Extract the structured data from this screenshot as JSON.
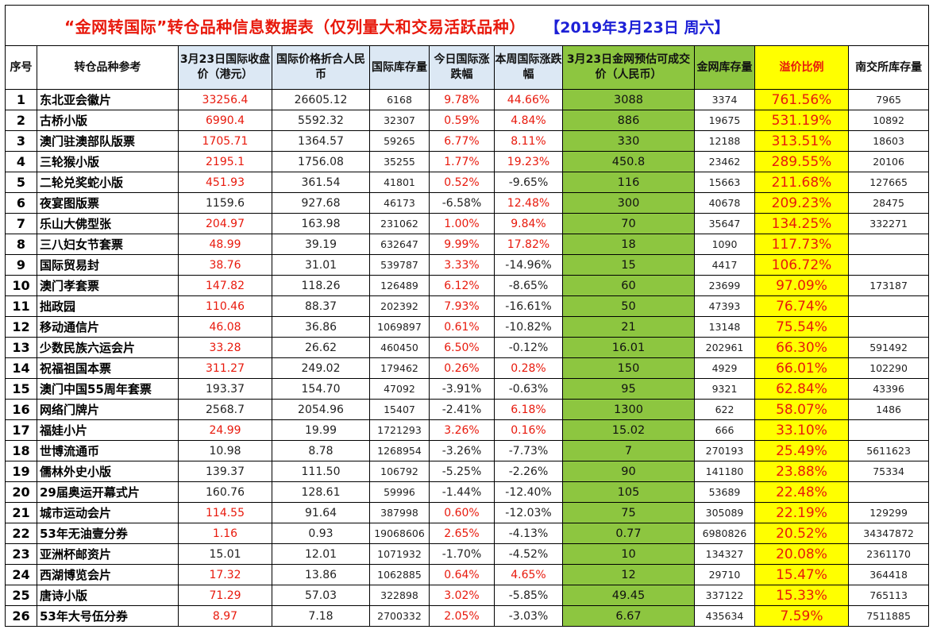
{
  "title": {
    "main": "“金网转国际”转仓品种信息数据表（仅列量大和交易活跃品种）",
    "date": "【2019年3月23日  周六】"
  },
  "headers": {
    "idx": "序号",
    "name": "转仓品种参考",
    "close_hkd": "3月23日国际收盘价（港元）",
    "rmb": "国际价格折合人民币",
    "intl_stock": "国际库存量",
    "today_change": "今日国际涨跌幅",
    "week_change": "本周国际涨跌幅",
    "est_price": "3月23日金网预估可成交价（人民币）",
    "jw_stock": "金网库存量",
    "premium": "溢价比例",
    "nj_stock": "南交所库存量"
  },
  "colors": {
    "title_red": "#e8190c",
    "title_blue": "#1d20d6",
    "header_blue_bg": "#dce8f4",
    "green_bg": "#8dc640",
    "yellow_bg": "#ffff00",
    "red_text": "#e8190c"
  },
  "rows": [
    {
      "idx": "1",
      "name": "东北亚会徽片",
      "close": "33256.4",
      "close_red": true,
      "rmb": "26605.12",
      "intl_stock": "6168",
      "today": "9.78%",
      "today_red": true,
      "week": "44.66%",
      "week_red": true,
      "est": "3088",
      "jw_stock": "3374",
      "premium": "761.56%",
      "nj": "7965"
    },
    {
      "idx": "2",
      "name": "古桥小版",
      "close": "6990.4",
      "close_red": true,
      "rmb": "5592.32",
      "intl_stock": "32307",
      "today": "0.59%",
      "today_red": true,
      "week": "4.84%",
      "week_red": true,
      "est": "886",
      "jw_stock": "19675",
      "premium": "531.19%",
      "nj": "10892"
    },
    {
      "idx": "3",
      "name": "澳门驻澳部队版票",
      "close": "1705.71",
      "close_red": true,
      "rmb": "1364.57",
      "intl_stock": "59265",
      "today": "6.77%",
      "today_red": true,
      "week": "8.11%",
      "week_red": true,
      "est": "330",
      "jw_stock": "12188",
      "premium": "313.51%",
      "nj": "18603"
    },
    {
      "idx": "4",
      "name": "三轮猴小版",
      "close": "2195.1",
      "close_red": true,
      "rmb": "1756.08",
      "intl_stock": "35255",
      "today": "1.77%",
      "today_red": true,
      "week": "19.23%",
      "week_red": true,
      "est": "450.8",
      "jw_stock": "23462",
      "premium": "289.55%",
      "nj": "20106"
    },
    {
      "idx": "5",
      "name": "二轮兑奖蛇小版",
      "close": "451.93",
      "close_red": true,
      "rmb": "361.54",
      "intl_stock": "41801",
      "today": "0.52%",
      "today_red": true,
      "week": "-9.65%",
      "week_red": false,
      "est": "116",
      "jw_stock": "15663",
      "premium": "211.68%",
      "nj": "127665"
    },
    {
      "idx": "6",
      "name": "夜宴图版票",
      "close": "1159.6",
      "close_red": false,
      "rmb": "927.68",
      "intl_stock": "46173",
      "today": "-6.58%",
      "today_red": false,
      "week": "12.48%",
      "week_red": true,
      "est": "300",
      "jw_stock": "40678",
      "premium": "209.23%",
      "nj": "28475"
    },
    {
      "idx": "7",
      "name": "乐山大佛型张",
      "close": "204.97",
      "close_red": true,
      "rmb": "163.98",
      "intl_stock": "231062",
      "today": "1.00%",
      "today_red": true,
      "week": "9.84%",
      "week_red": true,
      "est": "70",
      "jw_stock": "35647",
      "premium": "134.25%",
      "nj": "332271"
    },
    {
      "idx": "8",
      "name": "三八妇女节套票",
      "close": "48.99",
      "close_red": true,
      "rmb": "39.19",
      "intl_stock": "632647",
      "today": "9.99%",
      "today_red": true,
      "week": "17.82%",
      "week_red": true,
      "est": "18",
      "jw_stock": "1090",
      "premium": "117.73%",
      "nj": ""
    },
    {
      "idx": "9",
      "name": "国际贸易封",
      "close": "38.76",
      "close_red": true,
      "rmb": "31.01",
      "intl_stock": "539787",
      "today": "3.33%",
      "today_red": true,
      "week": "-14.96%",
      "week_red": false,
      "est": "15",
      "jw_stock": "4417",
      "premium": "106.72%",
      "nj": ""
    },
    {
      "idx": "10",
      "name": "澳门孝套票",
      "close": "147.82",
      "close_red": true,
      "rmb": "118.26",
      "intl_stock": "126489",
      "today": "6.12%",
      "today_red": true,
      "week": "-8.65%",
      "week_red": false,
      "est": "60",
      "jw_stock": "23699",
      "premium": "97.09%",
      "nj": "173187"
    },
    {
      "idx": "11",
      "name": "拙政园",
      "close": "110.46",
      "close_red": true,
      "rmb": "88.37",
      "intl_stock": "202392",
      "today": "7.93%",
      "today_red": true,
      "week": "-16.61%",
      "week_red": false,
      "est": "50",
      "jw_stock": "47393",
      "premium": "76.74%",
      "nj": ""
    },
    {
      "idx": "12",
      "name": "移动通信片",
      "close": "46.08",
      "close_red": true,
      "rmb": "36.86",
      "intl_stock": "1069897",
      "today": "0.61%",
      "today_red": true,
      "week": "-10.82%",
      "week_red": false,
      "est": "21",
      "jw_stock": "13148",
      "premium": "75.54%",
      "nj": ""
    },
    {
      "idx": "13",
      "name": "少数民族六运会片",
      "close": "33.28",
      "close_red": true,
      "rmb": "26.62",
      "intl_stock": "460450",
      "today": "6.50%",
      "today_red": true,
      "week": "-0.12%",
      "week_red": false,
      "est": "16.01",
      "jw_stock": "202961",
      "premium": "66.30%",
      "nj": "591492"
    },
    {
      "idx": "14",
      "name": "祝福祖国本票",
      "close": "311.27",
      "close_red": true,
      "rmb": "249.02",
      "intl_stock": "179462",
      "today": "0.26%",
      "today_red": true,
      "week": "0.28%",
      "week_red": true,
      "est": "150",
      "jw_stock": "4929",
      "premium": "66.01%",
      "nj": "102290"
    },
    {
      "idx": "15",
      "name": "澳门中国55周年套票",
      "close": "193.37",
      "close_red": false,
      "rmb": "154.70",
      "intl_stock": "47092",
      "today": "-3.91%",
      "today_red": false,
      "week": "-0.63%",
      "week_red": false,
      "est": "95",
      "jw_stock": "9321",
      "premium": "62.84%",
      "nj": "43396"
    },
    {
      "idx": "16",
      "name": "网络门牌片",
      "close": "2568.7",
      "close_red": false,
      "rmb": "2054.96",
      "intl_stock": "15407",
      "today": "-2.41%",
      "today_red": false,
      "week": "6.18%",
      "week_red": true,
      "est": "1300",
      "jw_stock": "622",
      "premium": "58.07%",
      "nj": "1486"
    },
    {
      "idx": "17",
      "name": "福娃小片",
      "close": "24.99",
      "close_red": true,
      "rmb": "19.99",
      "intl_stock": "1721293",
      "today": "3.26%",
      "today_red": true,
      "week": "0.16%",
      "week_red": true,
      "est": "15.02",
      "jw_stock": "666",
      "premium": "33.10%",
      "nj": ""
    },
    {
      "idx": "18",
      "name": "世博流通币",
      "close": "10.98",
      "close_red": false,
      "rmb": "8.78",
      "intl_stock": "1268954",
      "today": "-3.26%",
      "today_red": false,
      "week": "-7.73%",
      "week_red": false,
      "est": "7",
      "jw_stock": "270193",
      "premium": "25.49%",
      "nj": "5611623"
    },
    {
      "idx": "19",
      "name": "儒林外史小版",
      "close": "139.37",
      "close_red": false,
      "rmb": "111.50",
      "intl_stock": "106792",
      "today": "-5.25%",
      "today_red": false,
      "week": "-2.26%",
      "week_red": false,
      "est": "90",
      "jw_stock": "141180",
      "premium": "23.88%",
      "nj": "75334"
    },
    {
      "idx": "20",
      "name": "29届奥运开幕式片",
      "close": "160.76",
      "close_red": false,
      "rmb": "128.61",
      "intl_stock": "59996",
      "today": "-1.44%",
      "today_red": false,
      "week": "-12.40%",
      "week_red": false,
      "est": "105",
      "jw_stock": "53689",
      "premium": "22.48%",
      "nj": ""
    },
    {
      "idx": "21",
      "name": "城市运动会片",
      "close": "114.55",
      "close_red": true,
      "rmb": "91.64",
      "intl_stock": "387998",
      "today": "0.60%",
      "today_red": true,
      "week": "-12.03%",
      "week_red": false,
      "est": "75",
      "jw_stock": "305089",
      "premium": "22.19%",
      "nj": "129299"
    },
    {
      "idx": "22",
      "name": "53年无油壹分券",
      "close": "1.16",
      "close_red": true,
      "rmb": "0.93",
      "intl_stock": "19068606",
      "today": "2.65%",
      "today_red": true,
      "week": "-4.13%",
      "week_red": false,
      "est": "0.77",
      "jw_stock": "6980826",
      "premium": "20.52%",
      "nj": "34347872"
    },
    {
      "idx": "23",
      "name": "亚洲杯邮资片",
      "close": "15.01",
      "close_red": false,
      "rmb": "12.01",
      "intl_stock": "1071932",
      "today": "-1.70%",
      "today_red": false,
      "week": "-4.52%",
      "week_red": false,
      "est": "10",
      "jw_stock": "134327",
      "premium": "20.08%",
      "nj": "2361170"
    },
    {
      "idx": "24",
      "name": "西湖博览会片",
      "close": "17.32",
      "close_red": true,
      "rmb": "13.86",
      "intl_stock": "1062885",
      "today": "0.64%",
      "today_red": true,
      "week": "4.65%",
      "week_red": true,
      "est": "12",
      "jw_stock": "29710",
      "premium": "15.47%",
      "nj": "364418"
    },
    {
      "idx": "25",
      "name": "唐诗小版",
      "close": "71.29",
      "close_red": true,
      "rmb": "57.03",
      "intl_stock": "322898",
      "today": "3.02%",
      "today_red": true,
      "week": "-5.85%",
      "week_red": false,
      "est": "49.45",
      "jw_stock": "337122",
      "premium": "15.33%",
      "nj": "765113"
    },
    {
      "idx": "26",
      "name": "53年大号伍分券",
      "close": "8.97",
      "close_red": true,
      "rmb": "7.18",
      "intl_stock": "2700332",
      "today": "2.05%",
      "today_red": true,
      "week": "-3.03%",
      "week_red": false,
      "est": "6.67",
      "jw_stock": "435634",
      "premium": "7.59%",
      "nj": "7511885"
    }
  ]
}
